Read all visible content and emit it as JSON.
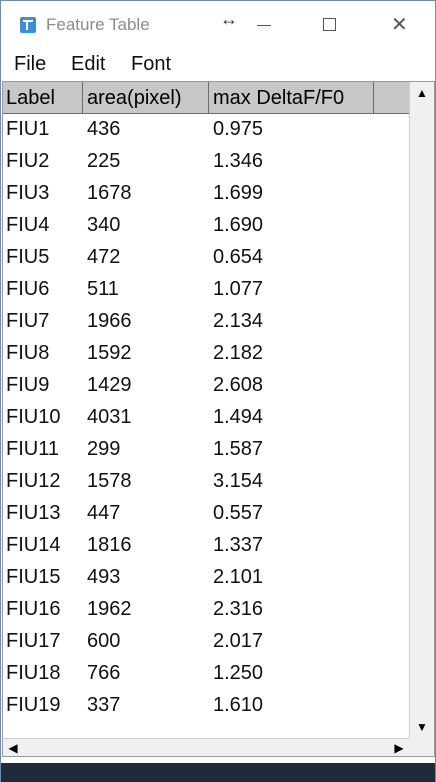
{
  "window": {
    "title": "Feature Table",
    "resize_glyph": "↔",
    "minimize_glyph": "",
    "close_glyph": "✕"
  },
  "menu": {
    "file": "File",
    "edit": "Edit",
    "font": "Font"
  },
  "table": {
    "headers": [
      "Label",
      "area(pixel)",
      "max DeltaF/F0",
      ""
    ],
    "rows": [
      [
        "FIU1",
        "436",
        "0.975"
      ],
      [
        "FIU2",
        "225",
        "1.346"
      ],
      [
        "FIU3",
        "1678",
        "1.699"
      ],
      [
        "FIU4",
        "340",
        "1.690"
      ],
      [
        "FIU5",
        "472",
        "0.654"
      ],
      [
        "FIU6",
        "511",
        "1.077"
      ],
      [
        "FIU7",
        "1966",
        "2.134"
      ],
      [
        "FIU8",
        "1592",
        "2.182"
      ],
      [
        "FIU9",
        "1429",
        "2.608"
      ],
      [
        "FIU10",
        "4031",
        "1.494"
      ],
      [
        "FIU11",
        "299",
        "1.587"
      ],
      [
        "FIU12",
        "1578",
        "3.154"
      ],
      [
        "FIU13",
        "447",
        "0.557"
      ],
      [
        "FIU14",
        "1816",
        "1.337"
      ],
      [
        "FIU15",
        "493",
        "2.101"
      ],
      [
        "FIU16",
        "1962",
        "2.316"
      ],
      [
        "FIU17",
        "600",
        "2.017"
      ],
      [
        "FIU18",
        "766",
        "1.250"
      ],
      [
        "FIU19",
        "337",
        "1.610"
      ]
    ]
  },
  "scrollbars": {
    "up": "▲",
    "down": "▼",
    "left": "◀",
    "right": "▶"
  }
}
